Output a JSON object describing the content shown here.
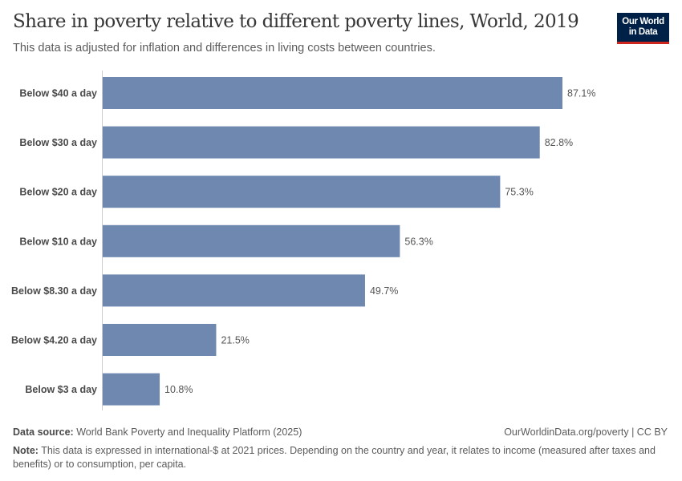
{
  "header": {
    "title": "Share in poverty relative to different poverty lines, World, 2019",
    "subtitle": "This data is adjusted for inflation and differences in living costs between countries.",
    "logo": "Our World in Data"
  },
  "chart_data": {
    "type": "bar",
    "orientation": "horizontal",
    "categories": [
      "Below $40 a day",
      "Below $30 a day",
      "Below $20 a day",
      "Below $10 a day",
      "Below $8.30 a day",
      "Below $4.20 a day",
      "Below $3 a day"
    ],
    "values": [
      87.1,
      82.8,
      75.3,
      56.3,
      49.7,
      21.5,
      10.8
    ],
    "value_labels": [
      "87.1%",
      "82.8%",
      "75.3%",
      "56.3%",
      "49.7%",
      "21.5%",
      "10.8%"
    ],
    "unit": "%",
    "xlim": [
      0,
      87.1
    ],
    "grid": false,
    "bar_color": "#6e88b0"
  },
  "footer": {
    "source_label": "Data source:",
    "source": "World Bank Poverty and Inequality Platform (2025)",
    "url": "OurWorldinData.org/poverty | CC BY",
    "note_label": "Note:",
    "note": "This data is expressed in international-$ at 2021 prices. Depending on the country and year, it relates to income (measured after taxes and benefits) or to consumption, per capita."
  }
}
